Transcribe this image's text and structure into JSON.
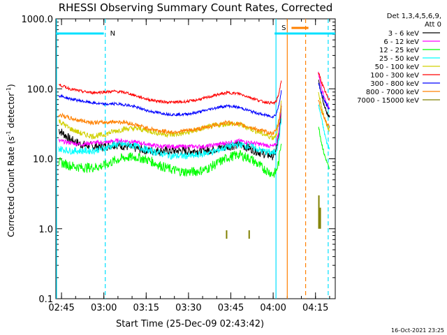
{
  "chart_data": {
    "type": "line",
    "title": "RHESSI Observing Summary Count Rates, Corrected",
    "xlabel": "Start Time (25-Dec-09 02:43:42)",
    "ylabel": "Corrected Count Rate (s",
    "ylabel_sup1": "-1",
    "ylabel_mid": " detector",
    "ylabel_sup2": "-1",
    "ylabel_end": ")",
    "yscale": "log",
    "ylim": [
      0.1,
      1000
    ],
    "xlim": [
      163,
      262
    ],
    "x_units": "minutes after 00:00 UT",
    "xtick_labels": [
      "02:45",
      "03:00",
      "03:15",
      "03:30",
      "03:45",
      "04:00",
      "04:15"
    ],
    "xtick_values": [
      165,
      180,
      195,
      210,
      225,
      240,
      255
    ],
    "ytick_labels": [
      "0.1",
      "1.0",
      "10.0",
      "100.0",
      "1000.0"
    ],
    "ytick_values": [
      0.1,
      1,
      10,
      100,
      1000
    ],
    "legend": {
      "header1": "Det 1,3,4,5,6,9,",
      "header2": "Att 0",
      "placement": "right"
    },
    "timestamp": "16-Oct-2021 23:25",
    "flags": [
      {
        "label": "N",
        "start": 163,
        "end": 180,
        "color": "#00e0ff"
      },
      {
        "label": "S",
        "start": 240.5,
        "end": 262,
        "color": "#00e0ff"
      },
      {
        "label": "",
        "start": 246.5,
        "end": 252.5,
        "color": "#ff8000"
      }
    ],
    "vlines": [
      {
        "x": 180.5,
        "color": "#00e0ff",
        "style": "dashed"
      },
      {
        "x": 241,
        "color": "#00e0ff",
        "style": "solid"
      },
      {
        "x": 245,
        "color": "#ff8000",
        "style": "solid"
      },
      {
        "x": 251.5,
        "color": "#ff8000",
        "style": "dashed"
      },
      {
        "x": 259.5,
        "color": "#00e0ff",
        "style": "dashed"
      }
    ],
    "series": [
      {
        "name": "3 - 6 keV",
        "color": "#000000",
        "x": [
          164,
          168,
          172,
          176,
          180,
          184,
          188,
          192,
          196,
          200,
          204,
          208,
          212,
          216,
          220,
          224,
          228,
          232,
          236,
          240,
          241,
          242,
          243
        ],
        "values": [
          26,
          19,
          16,
          15,
          15,
          16,
          15,
          14,
          13,
          13,
          13,
          13,
          13,
          13,
          14,
          15,
          16,
          14,
          12,
          11,
          13,
          20,
          55
        ],
        "x2": [
          256,
          257,
          258,
          259,
          260
        ],
        "values2": [
          140,
          90,
          60,
          45,
          40
        ]
      },
      {
        "name": "6 - 12 keV",
        "color": "#ff00ff",
        "x": [
          164,
          168,
          172,
          176,
          180,
          184,
          188,
          192,
          196,
          200,
          204,
          208,
          212,
          216,
          220,
          224,
          228,
          232,
          236,
          240,
          241,
          242,
          243
        ],
        "values": [
          18,
          17,
          16,
          17,
          17,
          18,
          18,
          17,
          16,
          15,
          15,
          15,
          15,
          15,
          16,
          17,
          18,
          17,
          16,
          15,
          16,
          25,
          70
        ],
        "x2": [
          256,
          257,
          258,
          259,
          260
        ],
        "values2": [
          170,
          110,
          80,
          60,
          55
        ]
      },
      {
        "name": "12 - 25 keV",
        "color": "#00ff00",
        "x": [
          164,
          168,
          172,
          176,
          180,
          184,
          188,
          192,
          196,
          200,
          204,
          208,
          212,
          216,
          220,
          224,
          228,
          232,
          236,
          240,
          241,
          242,
          243
        ],
        "values": [
          9,
          8,
          7.5,
          7.5,
          8,
          9.5,
          10.5,
          10.5,
          9.5,
          8,
          7,
          6.5,
          6.5,
          7,
          8.5,
          10.5,
          11.5,
          10,
          7.5,
          6,
          6.5,
          9,
          20
        ],
        "x2": [
          256,
          257,
          258,
          259,
          260
        ],
        "values2": [
          30,
          18,
          12,
          9,
          7
        ]
      },
      {
        "name": "25 - 50 keV",
        "color": "#00ffff",
        "x": [
          164,
          168,
          172,
          176,
          180,
          184,
          188,
          192,
          196,
          200,
          204,
          208,
          212,
          216,
          220,
          224,
          228,
          232,
          236,
          240,
          241,
          242,
          243
        ],
        "values": [
          14,
          13,
          13,
          13,
          14,
          16,
          16,
          15,
          13,
          12,
          11,
          11,
          11,
          12,
          13,
          15,
          16,
          15,
          13,
          12,
          13,
          18,
          40
        ],
        "x2": [
          256,
          257,
          258,
          259,
          260
        ],
        "values2": [
          60,
          40,
          25,
          17,
          14
        ]
      },
      {
        "name": "50 - 100 keV",
        "color": "#d0d000",
        "x": [
          164,
          168,
          172,
          176,
          180,
          184,
          188,
          192,
          196,
          200,
          204,
          208,
          212,
          216,
          220,
          224,
          228,
          232,
          236,
          240,
          241,
          242,
          243
        ],
        "values": [
          35,
          27,
          23,
          21,
          22,
          25,
          27,
          27,
          25,
          23,
          22,
          23,
          25,
          28,
          30,
          32,
          31,
          27,
          23,
          20,
          22,
          30,
          70
        ],
        "x2": [
          256,
          257,
          258,
          259,
          260
        ],
        "values2": [
          90,
          60,
          40,
          30,
          25
        ]
      },
      {
        "name": "100 - 300 keV",
        "color": "#ff0000",
        "x": [
          164,
          168,
          172,
          176,
          180,
          184,
          188,
          192,
          196,
          200,
          204,
          208,
          212,
          216,
          220,
          224,
          228,
          232,
          236,
          240,
          241,
          242,
          243
        ],
        "values": [
          115,
          100,
          92,
          88,
          90,
          92,
          88,
          78,
          70,
          66,
          64,
          65,
          68,
          74,
          82,
          88,
          85,
          75,
          66,
          62,
          65,
          85,
          140
        ],
        "x2": [
          256,
          257,
          258,
          259,
          260
        ],
        "values2": [
          170,
          130,
          100,
          80,
          70
        ]
      },
      {
        "name": "300 - 800 keV",
        "color": "#0000ff",
        "x": [
          164,
          168,
          172,
          176,
          180,
          184,
          188,
          192,
          196,
          200,
          204,
          208,
          212,
          216,
          220,
          224,
          228,
          232,
          236,
          240,
          241,
          242,
          243
        ],
        "values": [
          80,
          72,
          67,
          63,
          60,
          61,
          59,
          54,
          48,
          45,
          43,
          43,
          45,
          49,
          54,
          57,
          54,
          48,
          43,
          40,
          43,
          58,
          100
        ],
        "x2": [
          256,
          257,
          258,
          259,
          260
        ],
        "values2": [
          120,
          90,
          70,
          58,
          50
        ]
      },
      {
        "name": "800 - 7000 keV",
        "color": "#ff8000",
        "x": [
          164,
          168,
          172,
          176,
          180,
          184,
          188,
          192,
          196,
          200,
          204,
          208,
          212,
          216,
          220,
          224,
          228,
          232,
          236,
          240,
          241,
          242,
          243
        ],
        "values": [
          43,
          38,
          35,
          33,
          33,
          34,
          33,
          30,
          27,
          25,
          24,
          25,
          26,
          28,
          31,
          33,
          31,
          28,
          25,
          23,
          25,
          35,
          60
        ],
        "x2": [
          256,
          257,
          258,
          259,
          260
        ],
        "values2": [
          70,
          50,
          40,
          32,
          28
        ]
      },
      {
        "name": "7000 - 15000 keV",
        "color": "#808000",
        "x": [],
        "values": [],
        "spikes": [
          [
            223.5,
            0.72,
            0.95
          ],
          [
            231.5,
            0.72,
            0.95
          ],
          [
            256.2,
            1.0,
            3.0
          ],
          [
            256.7,
            1.0,
            2.0
          ]
        ]
      }
    ]
  }
}
